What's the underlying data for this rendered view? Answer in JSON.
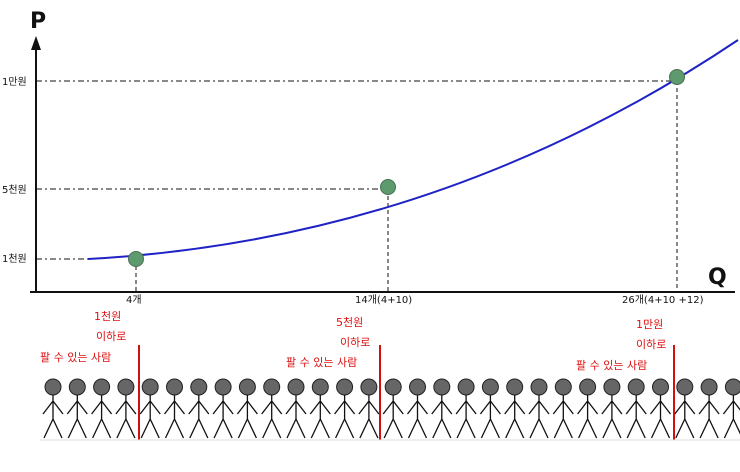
{
  "axis": {
    "y_label": "P",
    "x_label": "Q"
  },
  "price_levels": [
    {
      "label": "1만원",
      "key": "p10000"
    },
    {
      "label": "5천원",
      "key": "p5000"
    },
    {
      "label": "1천원",
      "key": "p1000"
    }
  ],
  "quantity_ticks": [
    {
      "label": "4개"
    },
    {
      "label": "14개(4+10)"
    },
    {
      "label": "26개(4+10 +12)"
    }
  ],
  "points": [
    {
      "q": "4개",
      "p": "1천원"
    },
    {
      "q": "14개(4+10)",
      "p": "5천원"
    },
    {
      "q": "26개(4+10 +12)",
      "p": "1만원"
    }
  ],
  "annotations": [
    {
      "line1": "1천원",
      "line2": "이하로",
      "line3": "팔 수 있는 사람"
    },
    {
      "line1": "5천원",
      "line2": "이하로",
      "line3": "팔 수 있는 사람"
    },
    {
      "line1": "1만원",
      "line2": "이하로",
      "line3": "팔 수 있는 사람"
    }
  ],
  "colors": {
    "curve": "#1f22c4",
    "point": "#5d9a6e",
    "divider": "#d11111",
    "text_red": "#d11111",
    "person": "#666666"
  },
  "people_count": 29
}
